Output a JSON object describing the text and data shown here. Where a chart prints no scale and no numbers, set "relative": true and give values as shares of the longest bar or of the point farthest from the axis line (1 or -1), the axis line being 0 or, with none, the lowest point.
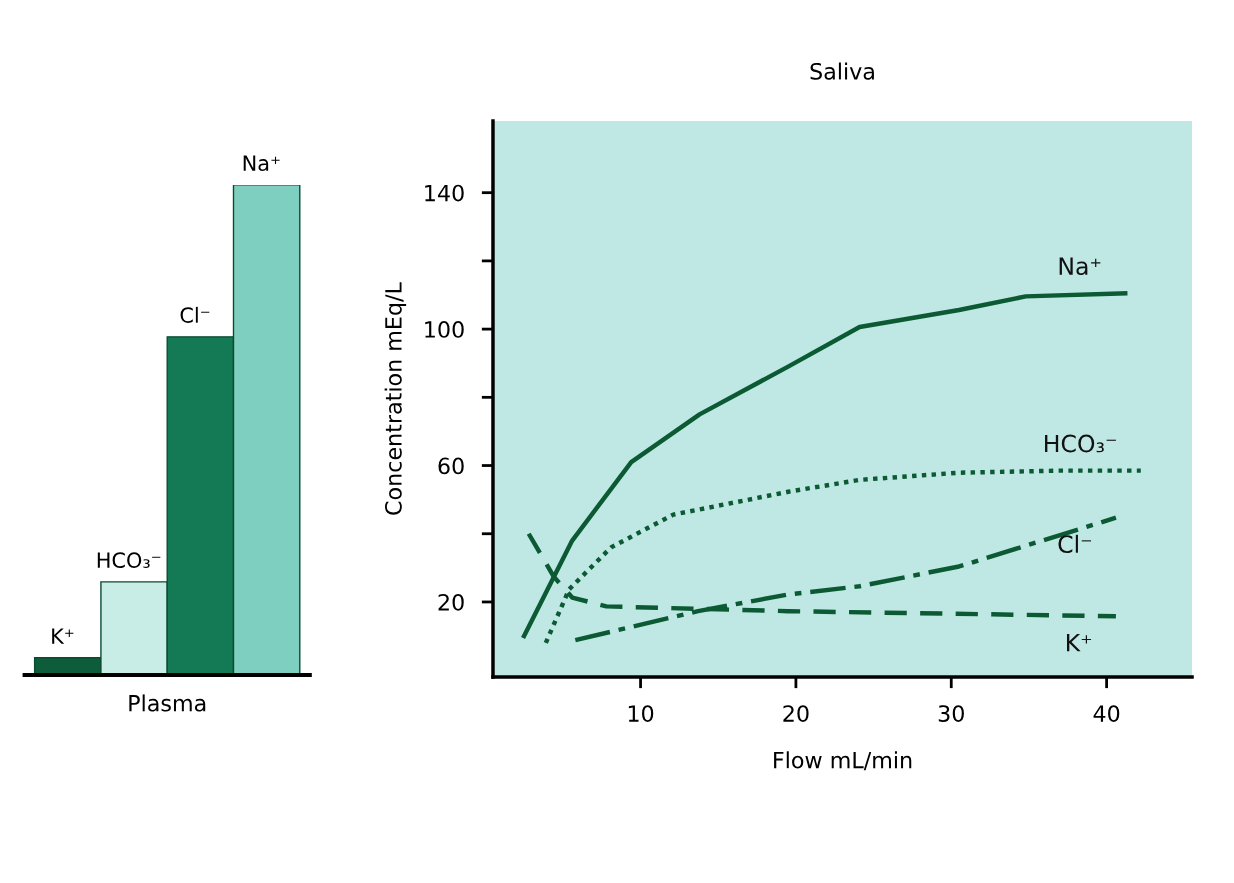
{
  "chart_data": [
    {
      "type": "bar",
      "xlabel": "Plasma",
      "relative": true,
      "categories": [
        "K⁺",
        "HCO₃⁻",
        "Cl⁻",
        "Na⁺"
      ],
      "values": [
        0.035,
        0.19,
        0.69,
        1
      ],
      "colors": [
        "#0d5c3a",
        "#c8ece6",
        "#137a55",
        "#7fcfc0"
      ]
    },
    {
      "type": "line",
      "title": "Saliva",
      "xlabel": "Flow mL/min",
      "ylabel": "Concentration mEq/L",
      "xlim": [
        0.5,
        45.5
      ],
      "ylim": [
        -2,
        161
      ],
      "xticks": [
        10,
        20,
        30,
        40
      ],
      "yticks": [
        20,
        {
          "value": 40,
          "label": null
        },
        60,
        {
          "value": 80,
          "label": null
        },
        100,
        {
          "value": 120,
          "label": null
        },
        140
      ],
      "grid": false,
      "legend": false,
      "series": [
        {
          "name": "Na⁺",
          "color": "#0b5a34",
          "line_style": "solid",
          "x": [
            2.5,
            5.6,
            9.4,
            13.8,
            19.5,
            24.1,
            30.5,
            34.8,
            41.2
          ],
          "values": [
            10,
            38,
            61,
            75,
            89,
            100.6,
            105.6,
            109.6,
            110.5
          ]
        },
        {
          "name": "HCO₃⁻",
          "color": "#0b5a34",
          "line_style": "dotted",
          "x": [
            3.9,
            5.4,
            8.1,
            12.1,
            19.5,
            24.1,
            30.5,
            36.9,
            42.2
          ],
          "values": [
            8,
            23.7,
            36,
            45.6,
            52.3,
            55.8,
            57.9,
            58.5,
            58.5
          ]
        },
        {
          "name": "Cl⁻",
          "color": "#0b5a34",
          "line_style": "dashdot",
          "x": [
            5.8,
            13.7,
            19.5,
            24.1,
            30.5,
            40.6
          ],
          "values": [
            8.8,
            17.3,
            22.2,
            24.6,
            30.4,
            44.7
          ]
        },
        {
          "name": "K⁺",
          "color": "#0b5a34",
          "line_style": "dashed",
          "x": [
            2.8,
            4.4,
            5.6,
            7.8,
            19.5,
            40.6
          ],
          "values": [
            40,
            27.5,
            21.3,
            18.7,
            17.3,
            15.8
          ]
        }
      ]
    }
  ]
}
